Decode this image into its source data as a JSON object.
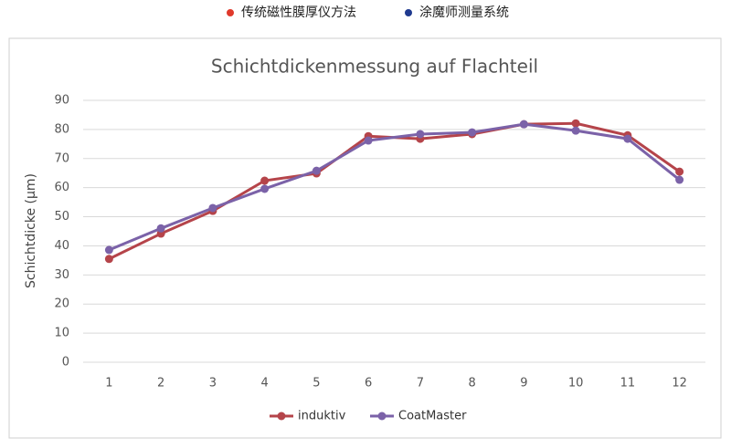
{
  "chart_data": {
    "type": "line",
    "header_legend": [
      {
        "name": "传统磁性膜厚仪方法",
        "color": "#e0392b"
      },
      {
        "name": "涂魔师测量系统",
        "color": "#1f3a8f"
      }
    ],
    "title": "Schichtdickenmessung auf Flachteil",
    "y_label": "Schichtdicke (µm)",
    "categories": [
      "1",
      "2",
      "3",
      "4",
      "5",
      "6",
      "7",
      "8",
      "9",
      "10",
      "11",
      "12"
    ],
    "series": [
      {
        "name": "induktiv",
        "color": "#b5444a",
        "values": [
          35.5,
          44.2,
          52,
          62.4,
          64.9,
          77.7,
          76.8,
          78.4,
          81.8,
          82.1,
          78,
          65.5
        ]
      },
      {
        "name": "CoatMaster",
        "color": "#7b62a8",
        "values": [
          38.6,
          46,
          53,
          59.6,
          65.8,
          76.2,
          78.4,
          79,
          81.8,
          79.6,
          76.8,
          62.7
        ]
      }
    ],
    "ylim": [
      0,
      90
    ],
    "yticks": [
      0,
      10,
      20,
      30,
      40,
      50,
      60,
      70,
      80,
      90
    ],
    "grid": true
  }
}
